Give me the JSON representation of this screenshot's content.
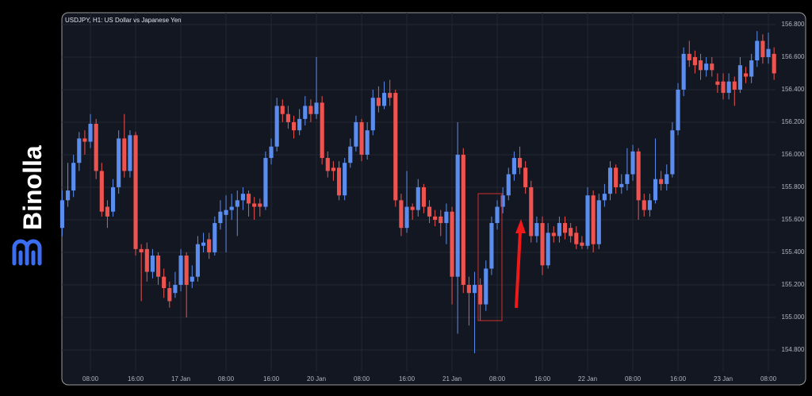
{
  "brand": "Binolla",
  "chart_data": {
    "type": "candlestick",
    "title": "USDJPY, H1: US Dollar vs Japanese Yen",
    "up_color": "#5b8def",
    "down_color": "#ef5350",
    "grid": true,
    "ylim": [
      154.668,
      156.873
    ],
    "xlim": [
      -0.06,
      126.26
    ],
    "yticks": [
      {
        "value": 156.8,
        "label": "156.800"
      },
      {
        "value": 156.6,
        "label": "156.600"
      },
      {
        "value": 156.4,
        "label": "156.400"
      },
      {
        "value": 156.2,
        "label": "156.200"
      },
      {
        "value": 156.0,
        "label": "156.000"
      },
      {
        "value": 155.8,
        "label": "155.800"
      },
      {
        "value": 155.6,
        "label": "155.600"
      },
      {
        "value": 155.4,
        "label": "155.400"
      },
      {
        "value": 155.2,
        "label": "155.200"
      },
      {
        "value": 155.0,
        "label": "155.000"
      },
      {
        "value": 154.8,
        "label": "154.800"
      }
    ],
    "xticks": [
      {
        "value": 5,
        "label": "08:00"
      },
      {
        "value": 13,
        "label": "16:00"
      },
      {
        "value": 21,
        "label": "17 Jan"
      },
      {
        "value": 29,
        "label": "08:00"
      },
      {
        "value": 37,
        "label": "16:00"
      },
      {
        "value": 45,
        "label": "20 Jan"
      },
      {
        "value": 53,
        "label": "08:00"
      },
      {
        "value": 61,
        "label": "16:00"
      },
      {
        "value": 69,
        "label": "21 Jan"
      },
      {
        "value": 77,
        "label": "08:00"
      },
      {
        "value": 85,
        "label": "16:00"
      },
      {
        "value": 93,
        "label": "22 Jan"
      },
      {
        "value": 101,
        "label": "08:00"
      },
      {
        "value": 109,
        "label": "16:00"
      },
      {
        "value": 117,
        "label": "23 Jan"
      },
      {
        "value": 125,
        "label": "08:00"
      }
    ],
    "open": [
      155.55,
      155.72,
      155.78,
      155.95,
      156.1,
      156.08,
      156.19,
      155.9,
      155.68,
      155.65,
      155.8,
      156.1,
      155.9,
      156.12,
      155.42,
      155.42,
      155.28,
      155.38,
      155.25,
      155.18,
      155.15,
      155.2,
      155.38,
      155.22,
      155.25,
      155.44,
      155.48,
      155.4,
      155.58,
      155.63,
      155.66,
      155.68,
      155.72,
      155.76,
      155.7,
      155.7,
      155.68,
      155.98,
      156.05,
      156.3,
      156.25,
      156.2,
      156.15,
      156.22,
      156.3,
      156.25,
      156.32,
      155.98,
      155.92,
      155.92,
      155.75,
      155.95,
      156.05,
      156.2,
      156.0,
      156.15,
      156.35,
      156.3,
      156.38,
      156.38,
      155.72,
      155.55,
      155.68,
      155.66,
      155.8,
      155.68,
      155.62,
      155.62,
      155.58,
      155.65,
      155.25,
      156.0,
      155.2,
      155.15,
      155.2,
      155.08,
      155.3,
      155.58,
      155.68,
      155.75,
      155.88,
      155.98,
      155.92,
      155.8,
      155.5,
      155.58,
      155.32,
      155.52,
      155.5,
      155.58,
      155.55,
      155.52,
      155.46,
      155.44,
      155.75,
      155.45,
      155.72,
      155.76,
      155.92,
      155.8,
      155.82,
      155.88,
      156.02,
      155.72,
      155.66,
      155.72,
      155.85,
      155.82,
      155.88,
      156.15,
      156.4,
      156.62,
      156.6,
      156.58,
      156.52,
      156.56,
      156.45,
      156.45,
      156.38,
      156.45,
      156.4,
      156.5,
      156.48,
      156.58,
      156.7,
      156.6,
      156.62
    ],
    "high": [
      155.78,
      155.95,
      156.0,
      156.14,
      156.15,
      156.25,
      156.22,
      155.95,
      155.72,
      155.85,
      156.15,
      156.25,
      156.15,
      156.14,
      155.45,
      155.46,
      155.42,
      155.4,
      155.3,
      155.22,
      155.28,
      155.42,
      155.4,
      155.32,
      155.5,
      155.52,
      155.52,
      155.62,
      155.72,
      155.75,
      155.76,
      155.78,
      155.8,
      155.78,
      155.74,
      155.73,
      156.02,
      156.1,
      156.35,
      156.34,
      156.3,
      156.24,
      156.28,
      156.36,
      156.34,
      156.6,
      156.36,
      156.02,
      155.96,
      155.96,
      155.98,
      156.1,
      156.24,
      156.22,
      156.2,
      156.4,
      156.42,
      156.45,
      156.46,
      156.4,
      155.76,
      155.9,
      155.7,
      155.85,
      155.82,
      155.72,
      155.66,
      155.66,
      155.7,
      155.68,
      156.2,
      156.04,
      155.25,
      155.28,
      155.24,
      155.35,
      155.62,
      155.72,
      155.8,
      155.92,
      156.02,
      156.05,
      155.96,
      155.84,
      155.62,
      155.62,
      155.58,
      155.56,
      155.62,
      155.62,
      155.58,
      155.56,
      155.5,
      155.8,
      155.78,
      155.76,
      155.82,
      155.96,
      155.94,
      155.88,
      156.04,
      156.06,
      156.04,
      155.76,
      155.76,
      156.1,
      155.9,
      155.94,
      156.2,
      156.44,
      156.66,
      156.7,
      156.64,
      156.62,
      156.6,
      156.6,
      156.5,
      156.5,
      156.5,
      156.48,
      156.6,
      156.54,
      156.62,
      156.76,
      156.74,
      156.75,
      156.66
    ],
    "low": [
      155.5,
      155.68,
      155.74,
      155.9,
      156.0,
      156.04,
      155.85,
      155.62,
      155.55,
      155.62,
      155.76,
      155.86,
      155.86,
      155.38,
      155.1,
      155.22,
      155.24,
      155.2,
      155.12,
      155.06,
      155.12,
      155.16,
      155.0,
      155.18,
      155.22,
      155.4,
      155.36,
      155.38,
      155.54,
      155.4,
      155.6,
      155.5,
      155.66,
      155.62,
      155.6,
      155.62,
      155.66,
      155.94,
      156.02,
      156.2,
      156.16,
      156.1,
      156.12,
      156.18,
      156.2,
      156.22,
      155.94,
      155.86,
      155.84,
      155.72,
      155.72,
      155.92,
      156.02,
      155.96,
      155.97,
      156.12,
      156.26,
      156.28,
      156.3,
      155.68,
      155.5,
      155.52,
      155.6,
      155.62,
      155.64,
      155.58,
      155.56,
      155.5,
      155.45,
      155.08,
      154.9,
      155.15,
      154.95,
      154.78,
      154.98,
      155.04,
      155.26,
      155.54,
      155.64,
      155.72,
      155.84,
      155.88,
      155.76,
      155.46,
      155.46,
      155.26,
      155.3,
      155.46,
      155.46,
      155.48,
      155.46,
      155.42,
      155.42,
      155.42,
      155.4,
      155.42,
      155.68,
      155.72,
      155.76,
      155.76,
      155.78,
      155.84,
      155.6,
      155.62,
      155.62,
      155.7,
      155.78,
      155.78,
      155.86,
      156.12,
      156.36,
      156.54,
      156.5,
      156.46,
      156.48,
      156.48,
      156.38,
      156.34,
      156.34,
      156.3,
      156.38,
      156.44,
      156.44,
      156.54,
      156.56,
      156.56,
      156.46
    ],
    "close": [
      155.72,
      155.78,
      155.95,
      156.1,
      156.08,
      156.19,
      155.9,
      155.65,
      155.62,
      155.8,
      156.1,
      155.9,
      156.12,
      155.42,
      155.4,
      155.28,
      155.38,
      155.25,
      155.18,
      155.1,
      155.2,
      155.38,
      155.2,
      155.25,
      155.45,
      155.46,
      155.4,
      155.58,
      155.65,
      155.66,
      155.68,
      155.72,
      155.76,
      155.7,
      155.68,
      155.68,
      155.98,
      156.05,
      156.3,
      156.25,
      156.2,
      156.15,
      156.22,
      156.3,
      156.25,
      156.32,
      155.98,
      155.9,
      155.9,
      155.75,
      155.95,
      156.05,
      156.2,
      156.0,
      156.15,
      156.35,
      156.3,
      156.38,
      156.35,
      155.72,
      155.55,
      155.68,
      155.66,
      155.8,
      155.68,
      155.62,
      155.6,
      155.58,
      155.65,
      155.25,
      156.0,
      155.2,
      155.15,
      155.2,
      155.08,
      155.3,
      155.58,
      155.68,
      155.75,
      155.88,
      155.98,
      155.92,
      155.8,
      155.5,
      155.58,
      155.32,
      155.52,
      155.5,
      155.58,
      155.52,
      155.5,
      155.45,
      155.44,
      155.75,
      155.45,
      155.72,
      155.76,
      155.92,
      155.8,
      155.82,
      155.88,
      156.02,
      155.72,
      155.66,
      155.72,
      155.85,
      155.82,
      155.88,
      156.15,
      156.4,
      156.62,
      156.58,
      156.55,
      156.52,
      156.56,
      156.52,
      156.43,
      156.38,
      156.45,
      156.4,
      156.55,
      156.48,
      156.58,
      156.7,
      156.6,
      156.65,
      156.5
    ]
  }
}
